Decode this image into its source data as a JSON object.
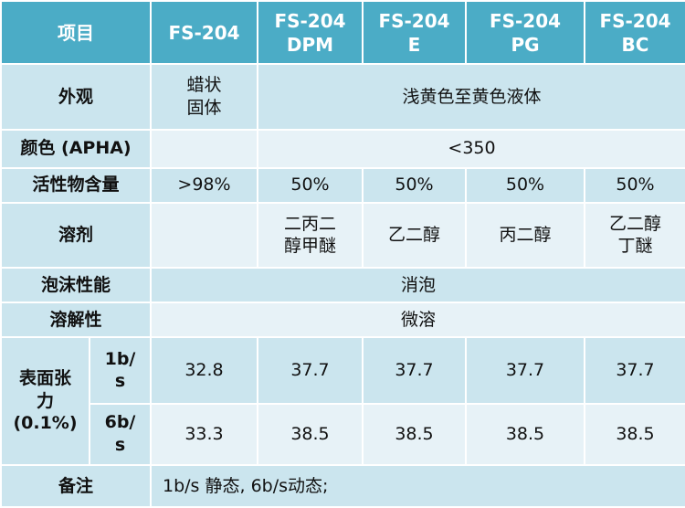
{
  "header": {
    "item": "项目",
    "c1": "FS-204",
    "c2_line1": "FS-204",
    "c2_line2": "DPM",
    "c3_line1": "FS-204",
    "c3_line2": "E",
    "c4_line1": "FS-204",
    "c4_line2": "PG",
    "c5_line1": "FS-204",
    "c5_line2": "BC"
  },
  "appearance": {
    "label": "外观",
    "c1_line1": "蜡状",
    "c1_line2": "固体",
    "rest": "浅黄色至黄色液体"
  },
  "color": {
    "label": "颜色 (APHA)",
    "c1": "",
    "rest": "<350"
  },
  "active": {
    "label": "活性物含量",
    "values": [
      ">98%",
      "50%",
      "50%",
      "50%",
      "50%"
    ]
  },
  "solvent": {
    "label": "溶剂",
    "c1": "",
    "c2_line1": "二丙二",
    "c2_line2": "醇甲醚",
    "c3": "乙二醇",
    "c4": "丙二醇",
    "c5_line1": "乙二醇",
    "c5_line2": "丁醚"
  },
  "foam": {
    "label": "泡沫性能",
    "value": "消泡"
  },
  "solubility": {
    "label": "溶解性",
    "value": "微溶"
  },
  "tension": {
    "label_line1": "表面张",
    "label_line2": "力",
    "label_line3": "(0.1%)",
    "r1_line1": "1b/",
    "r1_line2": "s",
    "r1_values": [
      "32.8",
      "37.7",
      "37.7",
      "37.7",
      "37.7"
    ],
    "r2_line1": "6b/",
    "r2_line2": "s",
    "r2_values": [
      "33.3",
      "38.5",
      "38.5",
      "38.5",
      "38.5"
    ]
  },
  "note": {
    "label": "备注",
    "value": "1b/s 静态, 6b/s动态;"
  },
  "colors": {
    "header": "#4bacc6",
    "band_dark": "#cbe5ee",
    "band_light": "#e7f2f7"
  }
}
